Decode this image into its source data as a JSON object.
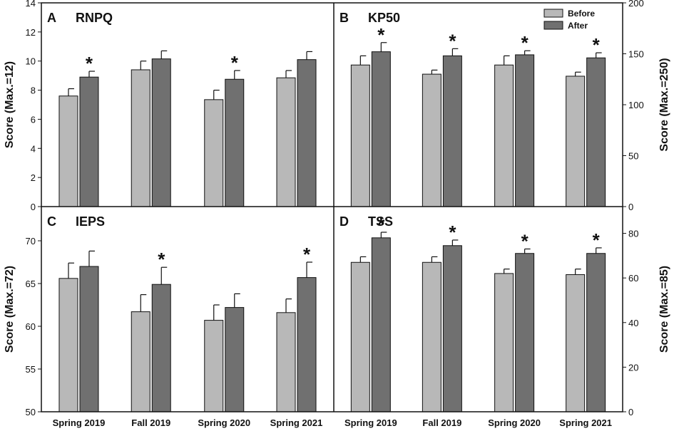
{
  "colors": {
    "before": "#b8b8b8",
    "after": "#707070",
    "axis": "#111111"
  },
  "legend": {
    "before": "Before",
    "after": "After",
    "position": "top-right of panel B"
  },
  "chart_data": [
    {
      "type": "bar",
      "panel": "A",
      "title": "RNPQ",
      "ylabel": "Score (Max.=12)",
      "yaxis_side": "left",
      "ylim": [
        0,
        14
      ],
      "yticks": [
        0,
        2,
        4,
        6,
        8,
        10,
        12,
        14
      ],
      "categories": [
        "Spring 2019",
        "Fall 2019",
        "Spring 2020",
        "Spring 2021"
      ],
      "series": [
        {
          "name": "Before",
          "values": [
            7.6,
            9.4,
            7.35,
            8.85
          ],
          "errors": [
            0.5,
            0.6,
            0.65,
            0.5
          ]
        },
        {
          "name": "After",
          "values": [
            8.9,
            10.15,
            8.75,
            10.1
          ],
          "errors": [
            0.4,
            0.55,
            0.6,
            0.55
          ]
        }
      ],
      "significant": [
        true,
        false,
        true,
        false
      ]
    },
    {
      "type": "bar",
      "panel": "B",
      "title": "KP50",
      "ylabel": "Score (Max.=250)",
      "yaxis_side": "right",
      "ylim": [
        0,
        200
      ],
      "yticks": [
        0,
        50,
        100,
        150,
        200
      ],
      "categories": [
        "Spring 2019",
        "Fall 2019",
        "Spring 2020",
        "Spring 2021"
      ],
      "series": [
        {
          "name": "Before",
          "values": [
            139,
            130,
            139,
            128
          ],
          "errors": [
            9,
            4,
            9,
            4
          ]
        },
        {
          "name": "After",
          "values": [
            152,
            148,
            149,
            146
          ],
          "errors": [
            9,
            7,
            4,
            5
          ]
        }
      ],
      "significant": [
        true,
        true,
        true,
        true
      ]
    },
    {
      "type": "bar",
      "panel": "C",
      "title": "IEPS",
      "ylabel": "Score (Max.=72)",
      "yaxis_side": "left",
      "ylim": [
        50,
        74
      ],
      "yticks": [
        50,
        55,
        60,
        65,
        70
      ],
      "categories": [
        "Spring 2019",
        "Fall 2019",
        "Spring 2020",
        "Spring 2021"
      ],
      "series": [
        {
          "name": "Before",
          "values": [
            65.6,
            61.7,
            60.7,
            61.6
          ],
          "errors": [
            1.8,
            2.0,
            1.8,
            1.6
          ]
        },
        {
          "name": "After",
          "values": [
            67.0,
            64.9,
            62.2,
            65.7
          ],
          "errors": [
            1.8,
            2.0,
            1.6,
            1.8
          ]
        }
      ],
      "significant": [
        false,
        true,
        false,
        true
      ]
    },
    {
      "type": "bar",
      "panel": "D",
      "title": "TSS",
      "ylabel": "Score (Max.=85)",
      "yaxis_side": "right",
      "ylim": [
        0,
        92
      ],
      "yticks": [
        0,
        20,
        40,
        60,
        80
      ],
      "categories": [
        "Spring 2019",
        "Fall 2019",
        "Spring 2020",
        "Spring 2021"
      ],
      "series": [
        {
          "name": "Before",
          "values": [
            67,
            67,
            62,
            61.5
          ],
          "errors": [
            2.5,
            2.5,
            2,
            2.5
          ]
        },
        {
          "name": "After",
          "values": [
            78,
            74.5,
            71,
            71
          ],
          "errors": [
            2.5,
            2.5,
            2,
            2.5
          ]
        }
      ],
      "significant": [
        true,
        true,
        true,
        true
      ]
    }
  ]
}
